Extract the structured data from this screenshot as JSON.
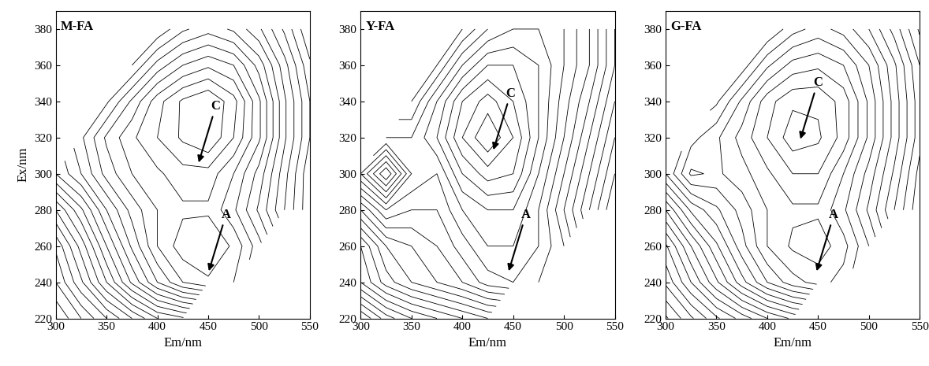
{
  "chart_data": [
    {
      "type": "contour",
      "title": "M-FA",
      "xlabel": "Em/nm",
      "ylabel": "Ex/nm",
      "x": [
        300,
        325,
        350,
        375,
        400,
        425,
        450,
        475,
        500,
        525,
        550
      ],
      "y": [
        220,
        240,
        260,
        280,
        300,
        320,
        340,
        360,
        380
      ],
      "z": [
        [
          30,
          35,
          40,
          45,
          50,
          52,
          null,
          null,
          null,
          null,
          null
        ],
        [
          35,
          42,
          50,
          58,
          65,
          70,
          72,
          70,
          null,
          null,
          null
        ],
        [
          38,
          46,
          55,
          63,
          70,
          74,
          75,
          72,
          66,
          null,
          null
        ],
        [
          45,
          52,
          60,
          66,
          70,
          72,
          72,
          68,
          62,
          55,
          48
        ],
        [
          55,
          60,
          66,
          70,
          72,
          74,
          74,
          70,
          64,
          56,
          48
        ],
        [
          null,
          62,
          68,
          72,
          75,
          78,
          80,
          75,
          68,
          58,
          50
        ],
        [
          null,
          null,
          62,
          68,
          74,
          78,
          80,
          76,
          68,
          58,
          50
        ],
        [
          null,
          null,
          null,
          60,
          66,
          70,
          72,
          70,
          64,
          56,
          48
        ],
        [
          null,
          null,
          null,
          null,
          58,
          62,
          64,
          62,
          58,
          52,
          45
        ]
      ],
      "xlim": [
        300,
        550
      ],
      "ylim": [
        220,
        390
      ],
      "xticks": [
        300,
        350,
        400,
        450,
        500,
        550
      ],
      "yticks": [
        220,
        240,
        260,
        280,
        300,
        320,
        340,
        360,
        380
      ],
      "annotations": [
        {
          "text": "C",
          "x": 440,
          "y": 305
        },
        {
          "text": "A",
          "x": 450,
          "y": 245
        }
      ]
    },
    {
      "type": "contour",
      "title": "Y-FA",
      "xlabel": "Em/nm",
      "x": [
        300,
        325,
        350,
        375,
        400,
        425,
        450,
        475,
        500,
        525,
        550
      ],
      "y": [
        220,
        240,
        260,
        280,
        300,
        320,
        340,
        360,
        380
      ],
      "z": [
        [
          40,
          45,
          48,
          50,
          52,
          54,
          null,
          null,
          null,
          null,
          null
        ],
        [
          50,
          55,
          58,
          60,
          62,
          65,
          66,
          64,
          null,
          null,
          null
        ],
        [
          52,
          58,
          60,
          62,
          65,
          68,
          68,
          66,
          62,
          null,
          null
        ],
        [
          60,
          66,
          64,
          64,
          68,
          70,
          70,
          66,
          60,
          54,
          48
        ],
        [
          70,
          78,
          68,
          66,
          72,
          75,
          74,
          68,
          62,
          56,
          50
        ],
        [
          null,
          66,
          66,
          70,
          76,
          80,
          76,
          70,
          64,
          58,
          52
        ],
        [
          null,
          null,
          62,
          68,
          74,
          77,
          74,
          70,
          65,
          60,
          54
        ],
        [
          null,
          null,
          null,
          62,
          68,
          72,
          72,
          70,
          66,
          62,
          56
        ],
        [
          null,
          null,
          null,
          null,
          62,
          66,
          68,
          68,
          66,
          62,
          56
        ]
      ],
      "xlim": [
        300,
        550
      ],
      "ylim": [
        220,
        390
      ],
      "xticks": [
        300,
        350,
        400,
        450,
        500,
        550
      ],
      "yticks": [
        220,
        240,
        260,
        280,
        300,
        320,
        340,
        360,
        380
      ],
      "annotations": [
        {
          "text": "C",
          "x": 430,
          "y": 312
        },
        {
          "text": "A",
          "x": 445,
          "y": 245
        }
      ]
    },
    {
      "type": "contour",
      "title": "G-FA",
      "xlabel": "Em/nm",
      "x": [
        300,
        325,
        350,
        375,
        400,
        425,
        450,
        475,
        500,
        525,
        550
      ],
      "y": [
        220,
        240,
        260,
        280,
        300,
        320,
        340,
        360,
        380
      ],
      "z": [
        [
          32,
          37,
          42,
          46,
          50,
          53,
          null,
          null,
          null,
          null,
          null
        ],
        [
          38,
          45,
          52,
          59,
          65,
          69,
          71,
          69,
          null,
          null,
          null
        ],
        [
          42,
          50,
          57,
          64,
          70,
          73,
          74,
          71,
          65,
          null,
          null
        ],
        [
          50,
          58,
          62,
          66,
          70,
          72,
          72,
          68,
          62,
          55,
          48
        ],
        [
          60,
          68,
          67,
          69,
          72,
          75,
          75,
          70,
          64,
          57,
          49
        ],
        [
          null,
          64,
          67,
          71,
          75,
          79,
          78,
          74,
          67,
          59,
          51
        ],
        [
          null,
          null,
          62,
          68,
          74,
          77,
          77,
          74,
          67,
          59,
          51
        ],
        [
          null,
          null,
          null,
          61,
          67,
          71,
          72,
          70,
          65,
          58,
          50
        ],
        [
          null,
          null,
          null,
          null,
          60,
          64,
          66,
          64,
          60,
          54,
          47
        ]
      ],
      "xlim": [
        300,
        550
      ],
      "ylim": [
        220,
        390
      ],
      "xticks": [
        300,
        350,
        400,
        450,
        500,
        550
      ],
      "yticks": [
        220,
        240,
        260,
        280,
        300,
        320,
        340,
        360,
        380
      ],
      "annotations": [
        {
          "text": "C",
          "x": 432,
          "y": 318
        },
        {
          "text": "A",
          "x": 448,
          "y": 245
        }
      ]
    }
  ]
}
